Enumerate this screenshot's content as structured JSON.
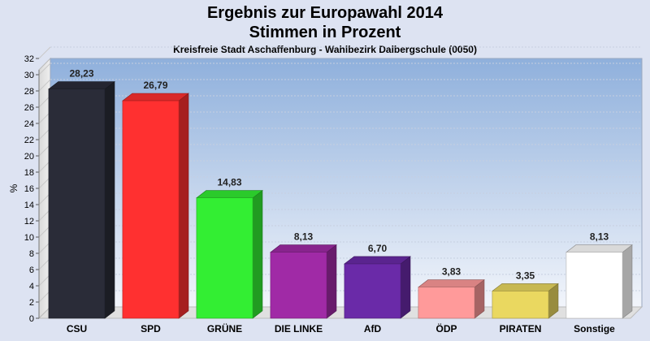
{
  "chart_data": {
    "type": "bar",
    "title": "Ergebnis zur Europawahl 2014",
    "subtitle_main": "Stimmen in Prozent",
    "subtitle": "Kreisfreie Stadt Aschaffenburg - Wahlbezirk Dalbergschule (0050)",
    "ylabel": "%",
    "xlabel": "",
    "ylim": [
      0,
      32
    ],
    "yticks": [
      0,
      2,
      4,
      6,
      8,
      10,
      12,
      14,
      16,
      18,
      20,
      22,
      24,
      26,
      28,
      30,
      32
    ],
    "grid": true,
    "categories": [
      "CSU",
      "SPD",
      "GRÜNE",
      "DIE LINKE",
      "AfD",
      "ÖDP",
      "PIRATEN",
      "Sonstige"
    ],
    "values": [
      28.23,
      26.79,
      14.83,
      8.13,
      6.7,
      3.83,
      3.35,
      8.13
    ],
    "value_labels": [
      "28,23",
      "26,79",
      "14,83",
      "8,13",
      "6,70",
      "3,83",
      "3,35",
      "8,13"
    ],
    "colors": [
      "#2a2c38",
      "#ff3030",
      "#33ee33",
      "#a02aa6",
      "#6a2aa8",
      "#ff9a9a",
      "#ead860",
      "#ffffff"
    ]
  }
}
